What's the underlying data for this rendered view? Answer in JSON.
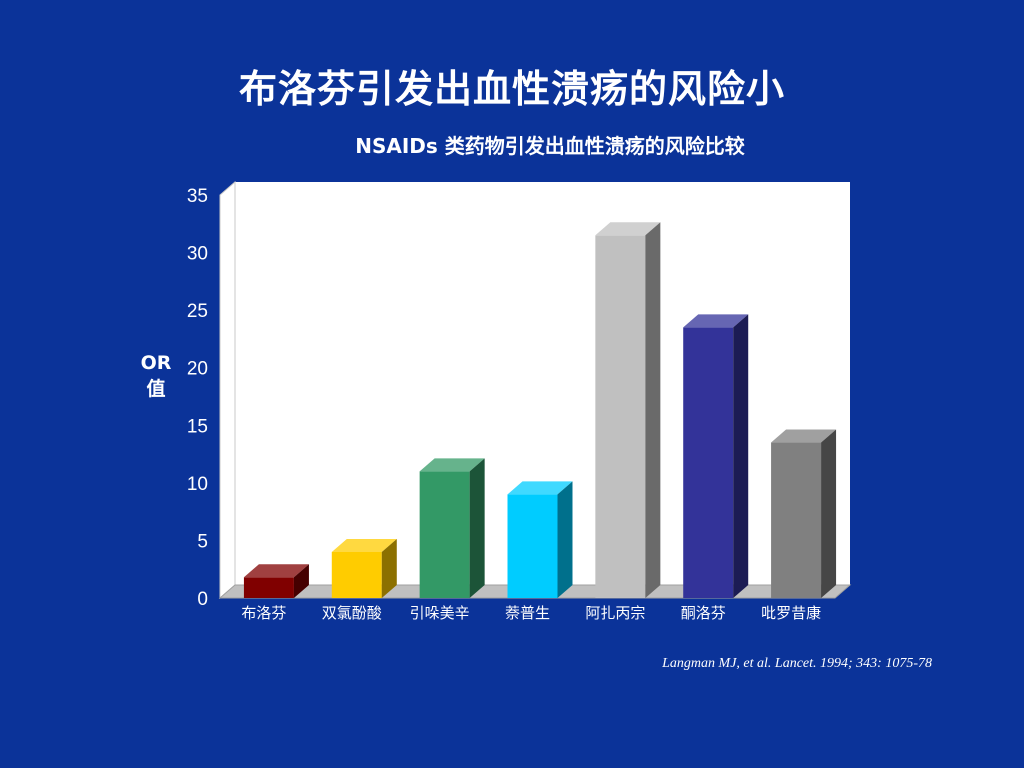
{
  "slide": {
    "title": "布洛芬引发出血性溃疡的风险小",
    "citation": "Langman MJ, et al. Lancet. 1994; 343: 1075-78",
    "background_color": "#0b3399"
  },
  "chart_data": {
    "type": "bar",
    "title": "NSAIDs 类药物引发出血性溃疡的风险比较",
    "xlabel": "",
    "ylabel": "OR值",
    "ylabel_lines": [
      "OR",
      "值"
    ],
    "ylim": [
      0,
      35
    ],
    "yticks": [
      0,
      5,
      10,
      15,
      20,
      25,
      30,
      35
    ],
    "grid": false,
    "legend": "none",
    "style": "3d-columns",
    "categories": [
      "布洛芬",
      "双氯酚酸",
      "引哚美辛",
      "萘普生",
      "阿扎丙宗",
      "酮洛芬",
      "吡罗昔康"
    ],
    "values": [
      1.8,
      4.0,
      11.0,
      9.0,
      31.5,
      23.5,
      13.5
    ],
    "colors": [
      "#800000",
      "#ffcc00",
      "#339966",
      "#00ccff",
      "#c0c0c0",
      "#333399",
      "#808080"
    ]
  }
}
